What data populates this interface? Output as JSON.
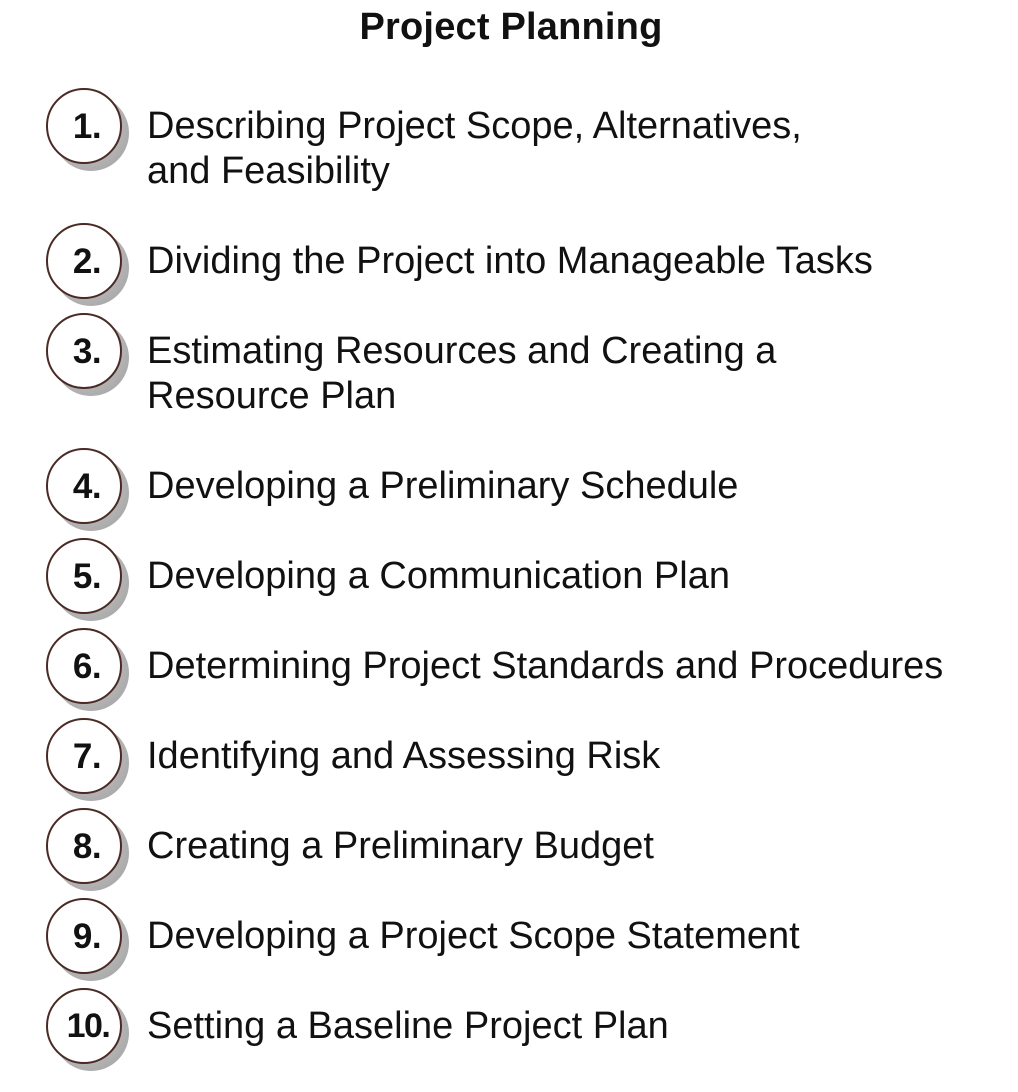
{
  "title": "Project Planning",
  "steps": [
    {
      "number": "1.",
      "label": "Describing Project Scope, Alternatives,\nand Feasibility"
    },
    {
      "number": "2.",
      "label": "Dividing the Project into Manageable Tasks"
    },
    {
      "number": "3.",
      "label": "Estimating Resources and Creating a\nResource Plan"
    },
    {
      "number": "4.",
      "label": "Developing a Preliminary Schedule"
    },
    {
      "number": "5.",
      "label": "Developing a Communication Plan"
    },
    {
      "number": "6.",
      "label": "Determining Project Standards and Procedures"
    },
    {
      "number": "7.",
      "label": "Identifying and Assessing Risk"
    },
    {
      "number": "8.",
      "label": "Creating a Preliminary Budget"
    },
    {
      "number": "9.",
      "label": "Developing a Project Scope Statement"
    },
    {
      "number": "10.",
      "label": "Setting a Baseline Project Plan"
    }
  ],
  "colors": {
    "circle_border": "#4a2a24",
    "circle_shadow": "#b3b3b3",
    "text": "#111111"
  }
}
